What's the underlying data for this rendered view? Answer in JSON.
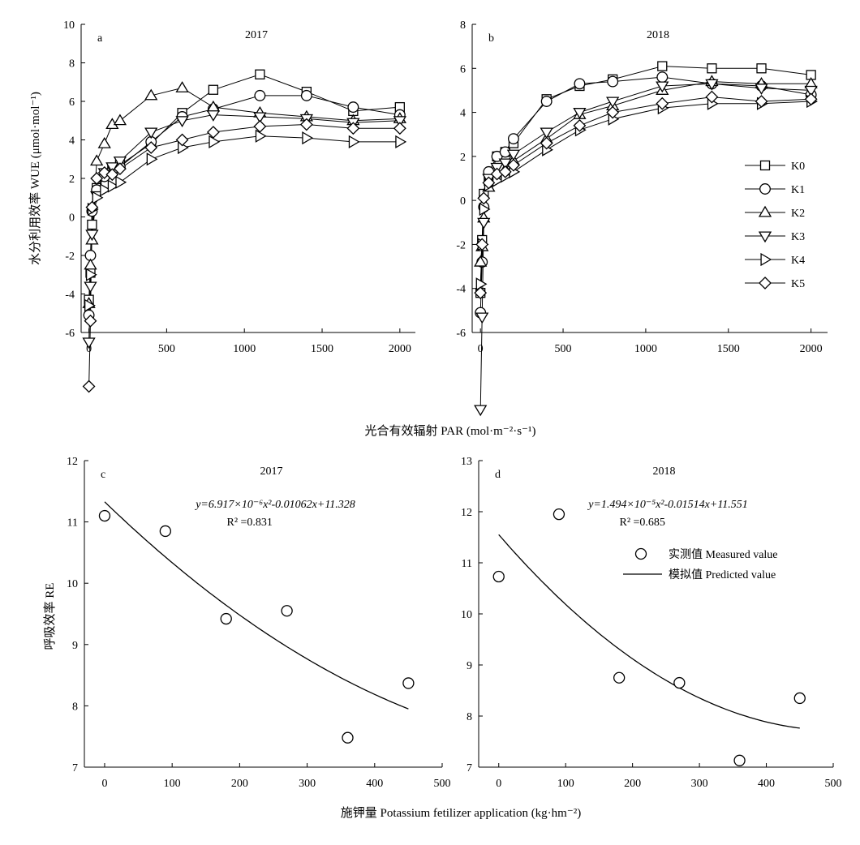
{
  "figure": {
    "wue_ylabel": "水分利用效率 WUE (μmol·mol⁻¹)",
    "par_xlabel": "光合有效辐射 PAR (mol·m⁻²·s⁻¹)",
    "re_ylabel": "呼吸效率 RE",
    "k_xlabel": "施钾量 Potassium fetilizer application (kg·hm⁻²)"
  },
  "chart_data": [
    {
      "type": "line",
      "panel": "a",
      "title": "2017",
      "x": [
        0,
        10,
        20,
        50,
        100,
        150,
        200,
        400,
        600,
        800,
        1100,
        1400,
        1700,
        2000
      ],
      "xlim": [
        -50,
        2100
      ],
      "ylim": [
        -6,
        10
      ],
      "xticks": [
        0,
        500,
        1000,
        1500,
        2000
      ],
      "yticks": [
        -6,
        -4,
        -2,
        0,
        2,
        4,
        6,
        8,
        10
      ],
      "series": [
        {
          "name": "K0",
          "marker": "square",
          "values": [
            -4.3,
            -2.9,
            -0.4,
            1.5,
            2.2,
            2.5,
            2.7,
            3.8,
            5.4,
            6.6,
            7.4,
            6.5,
            5.5,
            5.7
          ]
        },
        {
          "name": "K1",
          "marker": "circle",
          "values": [
            -5.1,
            -2.0,
            0.3,
            1.4,
            2.1,
            2.4,
            2.6,
            3.9,
            5.2,
            5.6,
            6.3,
            6.3,
            5.7,
            5.3
          ]
        },
        {
          "name": "K2",
          "marker": "triangle-up",
          "values": [
            -4.5,
            -2.5,
            -1.2,
            2.9,
            3.8,
            4.8,
            5.0,
            6.3,
            6.7,
            5.7,
            5.4,
            5.2,
            5.0,
            5.1
          ]
        },
        {
          "name": "K3",
          "marker": "triangle-down",
          "values": [
            -6.5,
            -3.6,
            -0.9,
            1.1,
            2.3,
            2.6,
            2.9,
            4.4,
            5.0,
            5.3,
            5.2,
            5.1,
            4.9,
            5.0
          ]
        },
        {
          "name": "K4",
          "marker": "triangle-right",
          "values": [
            -4.6,
            -3.0,
            0.4,
            1.0,
            1.4,
            1.6,
            1.8,
            3.0,
            3.6,
            3.9,
            4.2,
            4.1,
            3.9,
            3.9
          ]
        },
        {
          "name": "K5",
          "marker": "diamond",
          "values": [
            -8.8,
            -5.4,
            0.5,
            2.0,
            2.3,
            2.2,
            2.5,
            3.6,
            4.0,
            4.4,
            4.7,
            4.8,
            4.6,
            4.6
          ]
        }
      ]
    },
    {
      "type": "line",
      "panel": "b",
      "title": "2018",
      "x": [
        0,
        10,
        20,
        50,
        100,
        150,
        200,
        400,
        600,
        800,
        1100,
        1400,
        1700,
        2000
      ],
      "xlim": [
        -50,
        2100
      ],
      "ylim": [
        -6,
        8
      ],
      "xticks": [
        0,
        500,
        1000,
        1500,
        2000
      ],
      "yticks": [
        -6,
        -4,
        -2,
        0,
        2,
        4,
        6,
        8
      ],
      "legend": "right",
      "series": [
        {
          "name": "K0",
          "marker": "square",
          "values": [
            -4.2,
            -1.8,
            0.3,
            0.9,
            2.0,
            2.2,
            2.6,
            4.6,
            5.2,
            5.5,
            6.1,
            6.0,
            6.0,
            5.7
          ]
        },
        {
          "name": "K1",
          "marker": "circle",
          "values": [
            -5.1,
            -2.8,
            -0.3,
            1.3,
            2.0,
            2.2,
            2.8,
            4.5,
            5.3,
            5.4,
            5.6,
            5.3,
            5.2,
            4.8
          ]
        },
        {
          "name": "K2",
          "marker": "triangle-up",
          "values": [
            -2.8,
            -2.1,
            -0.8,
            0.6,
            1.1,
            1.4,
            1.8,
            2.8,
            3.9,
            4.3,
            5.0,
            5.4,
            5.3,
            5.3
          ]
        },
        {
          "name": "K3",
          "marker": "triangle-down",
          "values": [
            -9.5,
            -5.3,
            -1.0,
            1.0,
            1.5,
            1.7,
            2.1,
            3.1,
            4.0,
            4.5,
            5.2,
            5.3,
            5.1,
            5.0
          ]
        },
        {
          "name": "K4",
          "marker": "triangle-right",
          "values": [
            -3.8,
            -2.0,
            -0.4,
            0.7,
            0.9,
            1.1,
            1.3,
            2.3,
            3.2,
            3.7,
            4.2,
            4.4,
            4.4,
            4.5
          ]
        },
        {
          "name": "K5",
          "marker": "diamond",
          "values": [
            -4.2,
            -2.0,
            0.1,
            0.8,
            1.2,
            1.3,
            1.6,
            2.6,
            3.4,
            4.0,
            4.4,
            4.7,
            4.5,
            4.6
          ]
        }
      ]
    },
    {
      "type": "scatter",
      "panel": "c",
      "title": "2017",
      "equation": "y=6.917×10⁻⁶x²-0.01062x+11.328",
      "r2": "R² =0.831",
      "x": [
        0,
        90,
        180,
        270,
        360,
        450
      ],
      "measured": [
        11.1,
        10.85,
        9.42,
        9.55,
        7.48,
        8.37
      ],
      "fit": {
        "a": 6.917e-06,
        "b": -0.01062,
        "c": 11.328
      },
      "xlim": [
        -30,
        500
      ],
      "ylim": [
        7,
        12
      ],
      "xticks": [
        0,
        100,
        200,
        300,
        400,
        500
      ],
      "yticks": [
        7,
        8,
        9,
        10,
        11,
        12
      ]
    },
    {
      "type": "scatter",
      "panel": "d",
      "title": "2018",
      "equation": "y=1.494×10⁻⁵x²-0.01514x+11.551",
      "r2": "R² =0.685",
      "x": [
        0,
        90,
        180,
        270,
        360,
        450
      ],
      "measured": [
        10.73,
        11.95,
        8.75,
        8.65,
        7.13,
        8.35
      ],
      "fit": {
        "a": 1.494e-05,
        "b": -0.01514,
        "c": 11.551
      },
      "xlim": [
        -30,
        500
      ],
      "ylim": [
        7,
        13
      ],
      "xticks": [
        0,
        100,
        200,
        300,
        400,
        500
      ],
      "yticks": [
        7,
        8,
        9,
        10,
        11,
        12,
        13
      ],
      "legend": {
        "measured": "实测值 Measured value",
        "predicted": "模拟值 Predicted value"
      }
    }
  ]
}
